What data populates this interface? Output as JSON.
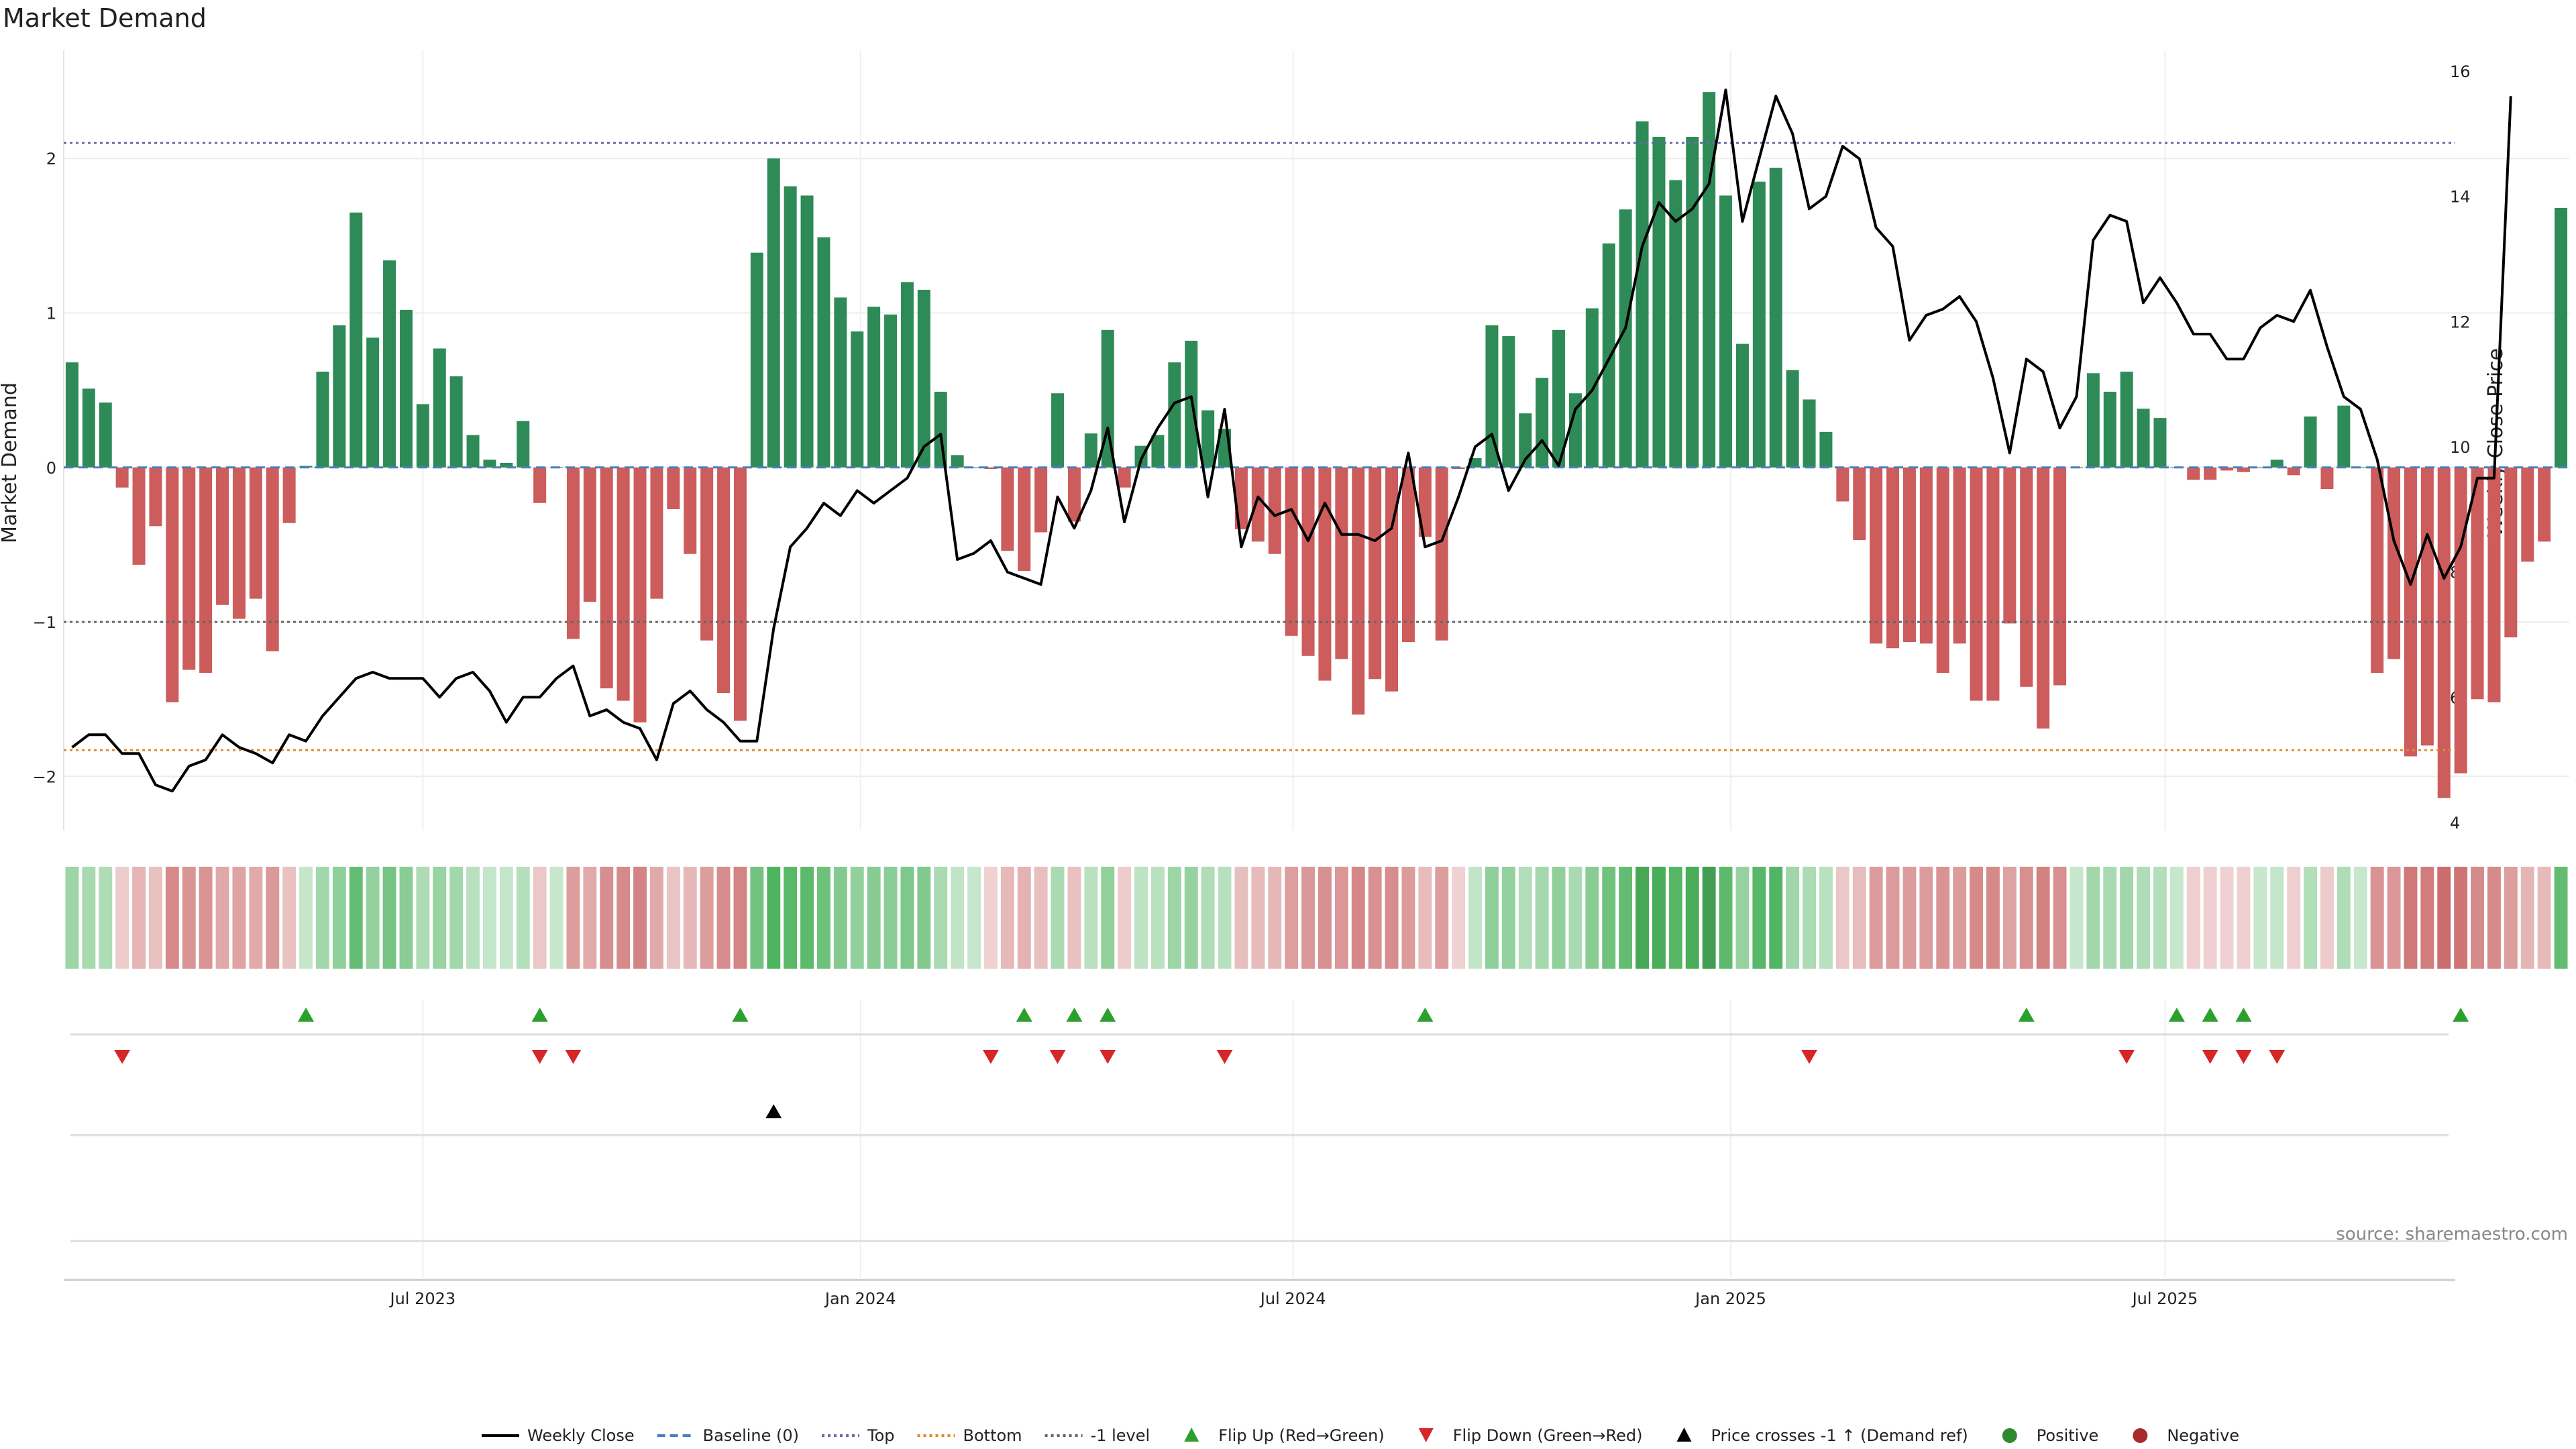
{
  "chart_data": {
    "type": "bar",
    "title": "Market Demand",
    "ylabel_left": "Market Demand",
    "ylabel_right": "Weekly Close Price",
    "source": "source: sharemaestro.com",
    "ylim_left": [
      -2.35,
      2.7
    ],
    "ylim_right": [
      4,
      16.3
    ],
    "yticks_left": [
      -2,
      -1,
      0,
      1,
      2
    ],
    "yticks_right": [
      4,
      6,
      8,
      10,
      12,
      14,
      16
    ],
    "reference_levels": {
      "top": 2.1,
      "minus_one": -1.0,
      "bottom": -1.83,
      "baseline": 0
    },
    "x_ticks": [
      {
        "label": "Jul 2023",
        "index": 21.5
      },
      {
        "label": "Jan 2024",
        "index": 47.7
      },
      {
        "label": "Jul 2024",
        "index": 73.6
      },
      {
        "label": "Jan 2025",
        "index": 99.8
      },
      {
        "label": "Jul 2025",
        "index": 125.8
      }
    ],
    "demand": [
      0.68,
      0.51,
      0.42,
      -0.13,
      -0.63,
      -0.38,
      -1.52,
      -1.31,
      -1.33,
      -0.89,
      -0.98,
      -0.85,
      -1.19,
      -0.36,
      0.01,
      0.62,
      0.92,
      1.65,
      0.84,
      1.34,
      1.02,
      0.41,
      0.77,
      0.59,
      0.21,
      0.05,
      0.03,
      0.3,
      -0.23,
      0,
      -1.11,
      -0.87,
      -1.43,
      -1.51,
      -1.65,
      -0.85,
      -0.27,
      -0.56,
      -1.12,
      -1.46,
      -1.64,
      1.39,
      2.0,
      1.82,
      1.76,
      1.49,
      1.1,
      0.88,
      1.04,
      0.99,
      1.2,
      1.15,
      0.49,
      0.08,
      0,
      -0.01,
      -0.54,
      -0.67,
      -0.42,
      0.48,
      -0.35,
      0.22,
      0.89,
      -0.13,
      0.14,
      0.21,
      0.68,
      0.82,
      0.37,
      0.25,
      -0.4,
      -0.48,
      -0.56,
      -1.09,
      -1.22,
      -1.38,
      -1.24,
      -1.6,
      -1.37,
      -1.45,
      -1.13,
      -0.45,
      -1.12,
      -0.01,
      0.06,
      0.92,
      0.85,
      0.35,
      0.58,
      0.89,
      0.48,
      1.03,
      1.45,
      1.67,
      2.24,
      2.14,
      1.86,
      2.14,
      2.43,
      1.76,
      0.8,
      1.85,
      1.94,
      0.63,
      0.44,
      0.23,
      -0.22,
      -0.47,
      -1.14,
      -1.17,
      -1.13,
      -1.14,
      -1.33,
      -1.14,
      -1.51,
      -1.51,
      -1.01,
      -1.42,
      -1.69,
      -1.41,
      0,
      0.61,
      0.49,
      0.62,
      0.38,
      0.32,
      0,
      -0.08,
      -0.08,
      -0.02,
      -0.03,
      0,
      0.05,
      -0.05,
      0.33,
      -0.14,
      0.4,
      0,
      -1.33,
      -1.24,
      -1.87,
      -1.8,
      -2.14,
      -1.98,
      -1.5,
      -1.52,
      -1.1,
      -0.61,
      -0.48,
      1.68
    ],
    "close": [
      5.2,
      5.4,
      5.4,
      5.1,
      5.1,
      4.6,
      4.5,
      4.9,
      5.0,
      5.4,
      5.2,
      5.1,
      4.95,
      5.4,
      5.3,
      5.7,
      6.0,
      6.3,
      6.4,
      6.3,
      6.3,
      6.3,
      6.0,
      6.3,
      6.4,
      6.1,
      5.6,
      6.0,
      6.0,
      6.3,
      6.5,
      5.7,
      5.8,
      5.6,
      5.5,
      5.0,
      5.9,
      6.1,
      5.8,
      5.6,
      5.3,
      5.3,
      7.1,
      8.4,
      8.7,
      9.1,
      8.9,
      9.3,
      9.1,
      9.3,
      9.5,
      10.0,
      10.2,
      8.2,
      8.3,
      8.5,
      8.0,
      7.9,
      7.8,
      9.2,
      8.7,
      9.3,
      10.3,
      8.8,
      9.8,
      10.3,
      10.7,
      10.8,
      9.2,
      10.6,
      8.4,
      9.2,
      8.9,
      9.0,
      8.5,
      9.1,
      8.6,
      8.6,
      8.5,
      8.7,
      9.9,
      8.4,
      8.5,
      9.2,
      10.0,
      10.2,
      9.3,
      9.8,
      10.1,
      9.7,
      10.6,
      10.9,
      11.4,
      11.9,
      13.2,
      13.9,
      13.6,
      13.8,
      14.2,
      15.7,
      13.6,
      14.6,
      15.6,
      15.0,
      13.8,
      14.0,
      14.8,
      14.6,
      13.5,
      13.2,
      11.7,
      12.1,
      12.2,
      12.4,
      12.0,
      11.1,
      9.9,
      11.4,
      11.2,
      10.3,
      10.8,
      13.3,
      13.7,
      13.6,
      12.3,
      12.7,
      12.3,
      11.8,
      11.8,
      11.4,
      11.4,
      11.9,
      12.1,
      12.0,
      12.5,
      11.6,
      10.8,
      10.6,
      9.8,
      8.5,
      7.8,
      8.6,
      7.9,
      8.4,
      9.5,
      9.5,
      15.6
    ],
    "flip_up_index": [
      14,
      28,
      40,
      57,
      60,
      62,
      81,
      117,
      126,
      128,
      130,
      143
    ],
    "flip_down_index": [
      3,
      28,
      30,
      55,
      59,
      62,
      69,
      104,
      123,
      128,
      130,
      132
    ],
    "price_cross_index": [
      42
    ],
    "legend": [
      {
        "label": "Weekly Close",
        "kind": "line",
        "color": "#000000"
      },
      {
        "label": "Baseline (0)",
        "kind": "dash",
        "color": "#4a7fc1"
      },
      {
        "label": "Top",
        "kind": "dot",
        "color": "#6a6aa8"
      },
      {
        "label": "Bottom",
        "kind": "dot",
        "color": "#e08a2c"
      },
      {
        "label": "-1 level",
        "kind": "dot",
        "color": "#666666"
      },
      {
        "label": "Flip Up (Red→Green)",
        "kind": "tri-up",
        "color": "#2ca02c"
      },
      {
        "label": "Flip Down (Green→Red)",
        "kind": "tri-down",
        "color": "#d62728"
      },
      {
        "label": "Price crosses -1 ↑ (Demand ref)",
        "kind": "tri-up",
        "color": "#000000"
      },
      {
        "label": "Positive",
        "kind": "dot-circle",
        "color": "#2f8a2f"
      },
      {
        "label": "Negative",
        "kind": "dot-circle",
        "color": "#a82a2a"
      }
    ],
    "colors": {
      "positive": "#2e8b57",
      "negative": "#cd5c5c",
      "line": "#000000",
      "flip_up": "#2ca02c",
      "flip_down": "#d62728"
    }
  }
}
